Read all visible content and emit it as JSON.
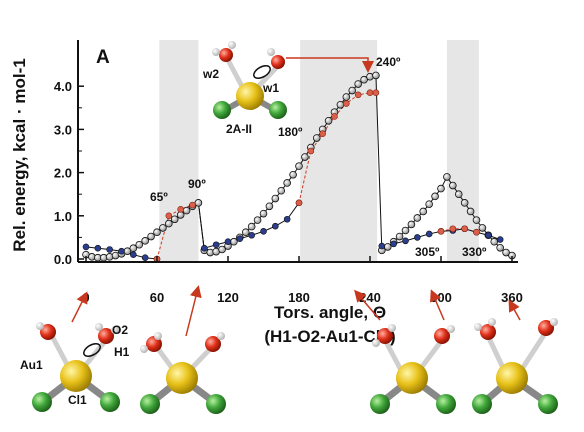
{
  "chart_data": {
    "type": "scatter",
    "panel_label": "A",
    "xlabel": "Tors. angle, Θ",
    "xlabel_sub": "(H1-O2-Au1-Cl1)",
    "ylabel": "Rel. energy, kcal · mol-1",
    "xlim": [
      0,
      360
    ],
    "ylim": [
      -0.1,
      5.0
    ],
    "x_ticks": [
      "0",
      "60",
      "120",
      "180",
      "240",
      "300",
      "360"
    ],
    "y_ticks": [
      "0.0",
      "1.0",
      "2.0",
      "3.0",
      "4.0"
    ],
    "shaded_regions": [
      [
        62,
        95
      ],
      [
        181,
        246
      ],
      [
        305,
        332
      ]
    ],
    "annotations": [
      "65º",
      "90º",
      "180º",
      "240º",
      "305º",
      "330º"
    ],
    "structure_labels": [
      "w2",
      "w1",
      "2A-II",
      "Au1",
      "O2",
      "H1",
      "Cl1"
    ],
    "series": [
      {
        "style": "open-circles",
        "x": [
          0,
          5,
          10,
          15,
          20,
          25,
          30,
          35,
          40,
          45,
          50,
          55,
          60,
          65,
          70,
          75,
          80,
          85,
          90,
          95,
          100,
          105,
          110,
          115,
          120,
          125,
          130,
          135,
          140,
          145,
          150,
          155,
          160,
          165,
          170,
          175,
          180,
          185,
          190,
          195,
          200,
          205,
          210,
          215,
          220,
          225,
          230,
          235,
          240,
          245,
          250,
          255,
          260,
          265,
          270,
          275,
          280,
          285,
          290,
          295,
          300,
          305,
          310,
          315,
          320,
          325,
          330,
          335,
          340,
          345,
          350,
          355,
          360
        ],
        "y": [
          0.1,
          0.05,
          0.03,
          0.03,
          0.05,
          0.08,
          0.12,
          0.18,
          0.25,
          0.33,
          0.42,
          0.52,
          0.62,
          0.72,
          0.82,
          0.92,
          1.02,
          1.12,
          1.22,
          1.3,
          0.2,
          0.15,
          0.17,
          0.22,
          0.3,
          0.4,
          0.5,
          0.62,
          0.75,
          0.9,
          1.05,
          1.22,
          1.4,
          1.58,
          1.76,
          1.95,
          2.15,
          2.36,
          2.58,
          2.8,
          3.0,
          3.2,
          3.4,
          3.57,
          3.75,
          3.9,
          4.05,
          4.15,
          4.22,
          4.25,
          0.2,
          0.28,
          0.4,
          0.52,
          0.66,
          0.8,
          0.95,
          1.1,
          1.27,
          1.45,
          1.63,
          1.9,
          1.7,
          1.5,
          1.3,
          1.1,
          0.9,
          0.72,
          0.55,
          0.4,
          0.26,
          0.15,
          0.08
        ]
      },
      {
        "style": "filled-circles",
        "x": [
          0,
          10,
          20,
          30,
          40,
          50,
          60,
          100,
          110,
          120,
          130,
          140,
          150,
          160,
          170,
          180,
          250,
          260,
          270,
          280,
          290,
          300,
          310,
          320,
          330,
          340,
          350
        ],
        "y": [
          0.28,
          0.25,
          0.22,
          0.18,
          0.1,
          0.03,
          0.0,
          0.25,
          0.33,
          0.4,
          0.47,
          0.55,
          0.64,
          0.76,
          0.92,
          1.3,
          0.3,
          0.35,
          0.42,
          0.5,
          0.58,
          0.64,
          0.66,
          0.7,
          0.62,
          0.55,
          0.45
        ]
      },
      {
        "style": "red-dashed",
        "x": [
          60,
          70,
          80,
          90,
          180,
          190,
          200,
          210,
          220,
          230,
          240,
          245,
          300,
          310,
          320,
          330
        ],
        "y": [
          0.0,
          1.0,
          1.15,
          1.25,
          1.3,
          2.5,
          2.9,
          3.3,
          3.6,
          3.8,
          3.85,
          3.85,
          0.64,
          0.7,
          0.7,
          0.62
        ]
      }
    ]
  }
}
